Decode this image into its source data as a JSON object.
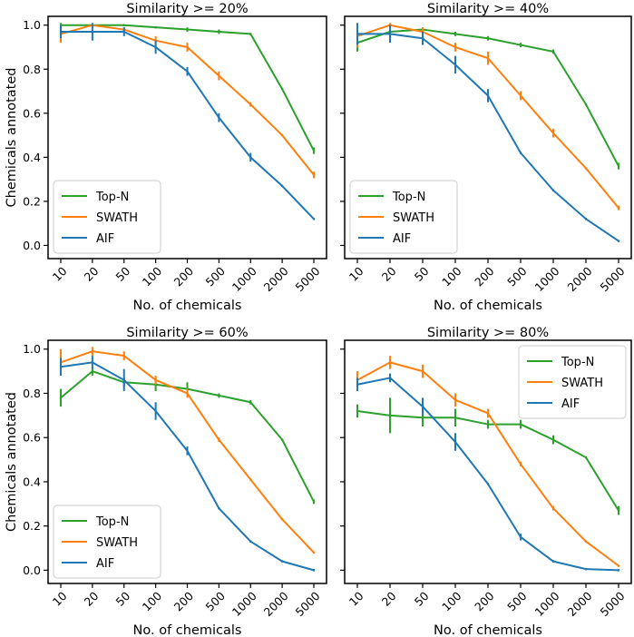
{
  "colors": {
    "top_n": "#2ca02c",
    "swath": "#ff7f0e",
    "aif": "#1f77b4",
    "axis": "#000000"
  },
  "chart_data": [
    {
      "type": "line",
      "title": "Similarity >= 20%",
      "xlabel": "No. of chemicals",
      "ylabel": "Chemicals annotated",
      "categories": [
        "10",
        "20",
        "50",
        "100",
        "200",
        "500",
        "1000",
        "2000",
        "5000"
      ],
      "yticks": [
        "0.0",
        "0.2",
        "0.4",
        "0.6",
        "0.8",
        "1.0"
      ],
      "ylim": [
        -0.06,
        1.04
      ],
      "legend_position": "lower-left",
      "series": [
        {
          "name": "Top-N",
          "color": "#2ca02c",
          "values": [
            1.0,
            1.0,
            1.0,
            0.99,
            0.98,
            0.97,
            0.96,
            0.71,
            0.43
          ],
          "errors": [
            0.01,
            0.005,
            0.005,
            0.005,
            0.01,
            0.01,
            0.005,
            0.005,
            0.015
          ]
        },
        {
          "name": "SWATH",
          "color": "#ff7f0e",
          "values": [
            0.96,
            1.0,
            0.98,
            0.93,
            0.9,
            0.77,
            0.64,
            0.5,
            0.32
          ],
          "errors": [
            0.04,
            0.005,
            0.01,
            0.02,
            0.02,
            0.02,
            0.01,
            0.005,
            0.015
          ]
        },
        {
          "name": "AIF",
          "color": "#1f77b4",
          "values": [
            0.97,
            0.97,
            0.97,
            0.9,
            0.79,
            0.58,
            0.4,
            0.27,
            0.12
          ],
          "errors": [
            0.03,
            0.04,
            0.02,
            0.03,
            0.02,
            0.02,
            0.02,
            0.005,
            0.005
          ]
        }
      ]
    },
    {
      "type": "line",
      "title": "Similarity >= 40%",
      "xlabel": "No. of chemicals",
      "ylabel": "",
      "categories": [
        "10",
        "20",
        "50",
        "100",
        "200",
        "500",
        "1000",
        "2000",
        "5000"
      ],
      "yticks": [
        "0.0",
        "0.2",
        "0.4",
        "0.6",
        "0.8",
        "1.0"
      ],
      "ylim": [
        -0.06,
        1.04
      ],
      "legend_position": "lower-left",
      "series": [
        {
          "name": "Top-N",
          "color": "#2ca02c",
          "values": [
            0.92,
            0.97,
            0.98,
            0.96,
            0.94,
            0.91,
            0.88,
            0.64,
            0.36
          ],
          "errors": [
            0.04,
            0.01,
            0.01,
            0.01,
            0.01,
            0.01,
            0.01,
            0.005,
            0.015
          ]
        },
        {
          "name": "SWATH",
          "color": "#ff7f0e",
          "values": [
            0.95,
            1.0,
            0.97,
            0.9,
            0.85,
            0.68,
            0.51,
            0.35,
            0.17
          ],
          "errors": [
            0.05,
            0.01,
            0.02,
            0.02,
            0.03,
            0.02,
            0.02,
            0.005,
            0.01
          ]
        },
        {
          "name": "AIF",
          "color": "#1f77b4",
          "values": [
            0.96,
            0.96,
            0.94,
            0.82,
            0.68,
            0.42,
            0.25,
            0.12,
            0.02
          ],
          "errors": [
            0.05,
            0.04,
            0.03,
            0.04,
            0.03,
            0.005,
            0.005,
            0.005,
            0.005
          ]
        }
      ]
    },
    {
      "type": "line",
      "title": "Similarity >= 60%",
      "xlabel": "No. of chemicals",
      "ylabel": "Chemicals annotated",
      "categories": [
        "10",
        "20",
        "50",
        "100",
        "200",
        "500",
        "1000",
        "2000",
        "5000"
      ],
      "yticks": [
        "0.0",
        "0.2",
        "0.4",
        "0.6",
        "0.8",
        "1.0"
      ],
      "ylim": [
        -0.06,
        1.04
      ],
      "legend_position": "lower-left",
      "series": [
        {
          "name": "Top-N",
          "color": "#2ca02c",
          "values": [
            0.78,
            0.9,
            0.85,
            0.84,
            0.82,
            0.79,
            0.76,
            0.59,
            0.31
          ],
          "errors": [
            0.04,
            0.02,
            0.02,
            0.03,
            0.03,
            0.01,
            0.01,
            0.005,
            0.01
          ]
        },
        {
          "name": "SWATH",
          "color": "#ff7f0e",
          "values": [
            0.94,
            0.99,
            0.97,
            0.86,
            0.8,
            0.59,
            0.41,
            0.23,
            0.08
          ],
          "errors": [
            0.06,
            0.02,
            0.02,
            0.02,
            0.02,
            0.01,
            0.005,
            0.005,
            0.005
          ]
        },
        {
          "name": "AIF",
          "color": "#1f77b4",
          "values": [
            0.92,
            0.94,
            0.86,
            0.72,
            0.54,
            0.28,
            0.13,
            0.04,
            0.0
          ],
          "errors": [
            0.04,
            0.03,
            0.05,
            0.04,
            0.02,
            0.005,
            0.005,
            0.005,
            0.005
          ]
        }
      ]
    },
    {
      "type": "line",
      "title": "Similarity >= 80%",
      "xlabel": "No. of chemicals",
      "ylabel": "",
      "categories": [
        "10",
        "20",
        "50",
        "100",
        "200",
        "500",
        "1000",
        "2000",
        "5000"
      ],
      "yticks": [
        "0.0",
        "0.2",
        "0.4",
        "0.6",
        "0.8",
        "1.0"
      ],
      "ylim": [
        -0.06,
        1.04
      ],
      "legend_position": "upper-right",
      "series": [
        {
          "name": "Top-N",
          "color": "#2ca02c",
          "values": [
            0.72,
            0.7,
            0.69,
            0.69,
            0.66,
            0.66,
            0.59,
            0.51,
            0.27
          ],
          "errors": [
            0.03,
            0.08,
            0.04,
            0.04,
            0.02,
            0.02,
            0.02,
            0.005,
            0.02
          ]
        },
        {
          "name": "SWATH",
          "color": "#ff7f0e",
          "values": [
            0.86,
            0.94,
            0.9,
            0.77,
            0.71,
            0.48,
            0.28,
            0.13,
            0.02
          ],
          "errors": [
            0.04,
            0.03,
            0.03,
            0.03,
            0.02,
            0.01,
            0.01,
            0.005,
            0.005
          ]
        },
        {
          "name": "AIF",
          "color": "#1f77b4",
          "values": [
            0.84,
            0.87,
            0.74,
            0.58,
            0.39,
            0.15,
            0.04,
            0.005,
            0.0
          ],
          "errors": [
            0.03,
            0.02,
            0.04,
            0.04,
            0.005,
            0.015,
            0.005,
            0.005,
            0.005
          ]
        }
      ]
    }
  ]
}
